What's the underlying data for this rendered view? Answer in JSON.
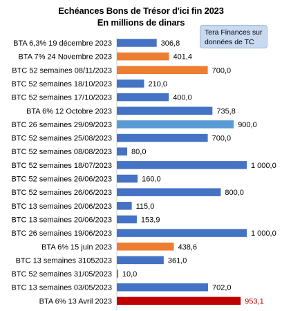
{
  "source_note": "Tera Finances sur données de TC",
  "colors": {
    "default": "#4472c4",
    "orange": "#ed7d31",
    "light_blue": "#5b9bd5",
    "red": "#c00000"
  },
  "chart_data": {
    "type": "bar",
    "orientation": "horizontal",
    "title": "Echéances Bons de Trésor d'ici fin 2023",
    "subtitle": "En millions de dinars",
    "categories": [
      "BTA 6,3% 19 décembre 2023",
      "BTA 7% 24 Novembre 2023",
      "BTC 52 semaines 08/11/2023",
      "BTC 52 semaines 18/10/2023",
      "BTC 52 semaines 17/10/2023",
      "BTA 6% 12 Octobre 2023",
      "BTC 26 semaines 29/09/2023",
      "BTC 52 semaines 25/08/2023",
      "BTC 52 semaines 08/08/2023",
      "BTC 52 semaines 18/07/2023",
      "BTC 52 semaines 26/06/2023",
      "BTC 52 semaines 26/06/2023",
      "BTC 13 semaines 20/06/2023",
      "BTC 13 semaines 20/06/2023",
      "BTC 26 semaines 19/06/2023",
      "BTA 6% 15 juin 2023",
      "BTC 13 semaines 31052023",
      "BTC 52 semaines 31/05/2023",
      "BTC 13 semaines 03/05/2023",
      "BTA 6% 13 Avril 2023"
    ],
    "values": [
      306.8,
      401.4,
      700.0,
      210.0,
      400.0,
      735.8,
      900.0,
      700.0,
      80.0,
      1000.0,
      160.0,
      800.0,
      115.0,
      153.9,
      1000.0,
      438.6,
      361.0,
      10.0,
      702.0,
      953.1
    ],
    "value_labels": [
      "306,8",
      "401,4",
      "700,0",
      "210,0",
      "400,0",
      "735,8",
      "900,0",
      "700,0",
      "80,0",
      "1 000,0",
      "160,0",
      "800,0",
      "115,0",
      "153,9",
      "1 000,0",
      "438,6",
      "361,0",
      "10,0",
      "702,0",
      "953,1"
    ],
    "bar_colors": [
      "default",
      "orange",
      "orange",
      "default",
      "default",
      "default",
      "light_blue",
      "default",
      "default",
      "default",
      "default",
      "default",
      "default",
      "default",
      "default",
      "orange",
      "default",
      "default",
      "default",
      "red"
    ],
    "label_colors": [
      "#000000",
      "#000000",
      "#000000",
      "#000000",
      "#000000",
      "#000000",
      "#000000",
      "#000000",
      "#000000",
      "#000000",
      "#000000",
      "#000000",
      "#000000",
      "#000000",
      "#000000",
      "#000000",
      "#000000",
      "#000000",
      "#000000",
      "#c00000"
    ],
    "xlim": [
      0,
      1000
    ],
    "grid": false,
    "legend": "none"
  }
}
